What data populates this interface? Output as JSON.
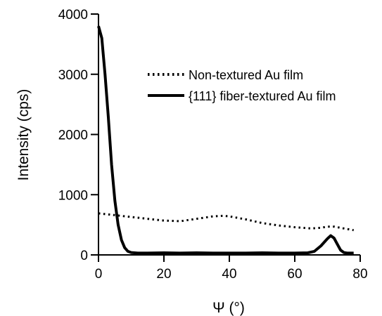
{
  "chart_data": {
    "type": "line",
    "xlabel": "Ψ (°)",
    "ylabel": "Intensity (cps)",
    "xlim": [
      0,
      80
    ],
    "ylim": [
      0,
      4000
    ],
    "x_ticks": [
      "0",
      "20",
      "40",
      "60",
      "80"
    ],
    "y_ticks": [
      "0",
      "1000",
      "2000",
      "3000",
      "4000"
    ],
    "grid": false,
    "legend_position": "top-right",
    "series": [
      {
        "name": "Non-textured Au film",
        "style": "dotted",
        "color": "#000000",
        "x": [
          0,
          5,
          10,
          15,
          20,
          25,
          30,
          35,
          38,
          40,
          45,
          50,
          55,
          60,
          65,
          68,
          70,
          72,
          75,
          78
        ],
        "y": [
          690,
          660,
          630,
          600,
          570,
          560,
          600,
          640,
          650,
          640,
          590,
          530,
          490,
          460,
          440,
          450,
          470,
          470,
          440,
          410
        ]
      },
      {
        "name": "{111} fiber-textured Au film",
        "style": "solid",
        "color": "#000000",
        "x": [
          0,
          1,
          2,
          3,
          4,
          5,
          6,
          7,
          8,
          9,
          10,
          12,
          15,
          20,
          25,
          30,
          35,
          40,
          45,
          50,
          55,
          60,
          64,
          66,
          68,
          70,
          71,
          72,
          73,
          74,
          75,
          76,
          78
        ],
        "y": [
          3800,
          3600,
          3000,
          2300,
          1500,
          900,
          500,
          250,
          120,
          60,
          40,
          30,
          30,
          35,
          30,
          35,
          30,
          30,
          30,
          35,
          30,
          30,
          35,
          60,
          150,
          270,
          320,
          280,
          180,
          80,
          40,
          30,
          30
        ]
      }
    ]
  }
}
